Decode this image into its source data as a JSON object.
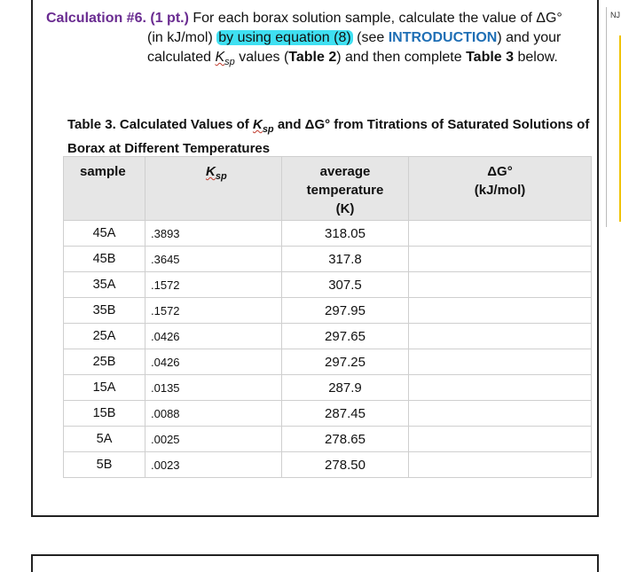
{
  "calculation": {
    "title": "Calculation #6. (1 pt.)",
    "line1_text": "For each borax solution sample, calculate the value of ΔG°",
    "line2_pre": "(in kJ/mol) ",
    "line2_highlight": "by using equation (8)",
    "line2_mid": " (see ",
    "line2_link": "INTRODUCTION",
    "line2_post": ") and your",
    "line3_pre": "calculated ",
    "ksp_k": "K",
    "ksp_sub": "sp",
    "line3_mid": " values (",
    "line3_bold1": "Table 2",
    "line3_mid2": ") and then complete ",
    "line3_bold2": "Table 3",
    "line3_post": " below."
  },
  "table": {
    "caption_pre": "Table 3. Calculated Values of ",
    "caption_k": "K",
    "caption_sub": "sp",
    "caption_post": " and ΔG° from Titrations of Saturated Solutions of Borax at Different Temperatures",
    "headers": {
      "sample": "sample",
      "ksp_k": "K",
      "ksp_sub": "sp",
      "temp_line1": "average",
      "temp_line2": "temperature",
      "temp_line3": "(K)",
      "dg_line1": "ΔG°",
      "dg_line2": "(kJ/mol)"
    },
    "rows": [
      {
        "sample": "45A",
        "ksp": ".3893",
        "temp": "318.05",
        "dg": ""
      },
      {
        "sample": "45B",
        "ksp": ".3645",
        "temp": "317.8",
        "dg": ""
      },
      {
        "sample": "35A",
        "ksp": ".1572",
        "temp": "307.5",
        "dg": ""
      },
      {
        "sample": "35B",
        "ksp": ".1572",
        "temp": "297.95",
        "dg": ""
      },
      {
        "sample": "25A",
        "ksp": ".0426",
        "temp": "297.65",
        "dg": ""
      },
      {
        "sample": "25B",
        "ksp": ".0426",
        "temp": "297.25",
        "dg": ""
      },
      {
        "sample": "15A",
        "ksp": ".0135",
        "temp": "287.9",
        "dg": ""
      },
      {
        "sample": "15B",
        "ksp": ".0088",
        "temp": "287.45",
        "dg": ""
      },
      {
        "sample": "5A",
        "ksp": ".0025",
        "temp": "278.65",
        "dg": ""
      },
      {
        "sample": "5B",
        "ksp": ".0023",
        "temp": "278.50",
        "dg": ""
      }
    ]
  },
  "side_tag": "NJ",
  "colors": {
    "title": "#6a2c91",
    "highlight": "#3fe0f2",
    "link": "#1f6fb5",
    "header_bg": "#e6e6e6"
  }
}
